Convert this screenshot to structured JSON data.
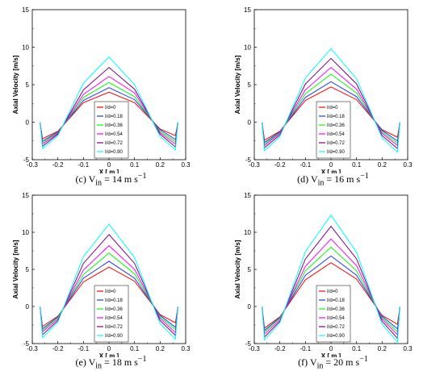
{
  "series_names": [
    "I/d=0",
    "I/d=0.18",
    "I/d=0.36",
    "I/d=0.54",
    "I/d=0.72",
    "I/d=0.90"
  ],
  "series_colors": [
    "#ff0000",
    "#1a3cff",
    "#00ff00",
    "#ff00ff",
    "#800080",
    "#00ffff"
  ],
  "panels": [
    {
      "caption_prefix": "(c) V",
      "caption_sub": "in",
      "caption_rest": " = 14 m s",
      "caption_sup": "−1"
    },
    {
      "caption_prefix": "(d) V",
      "caption_sub": "in",
      "caption_rest": " = 16 m s",
      "caption_sup": "−1"
    },
    {
      "caption_prefix": "(e) V",
      "caption_sub": "in",
      "caption_rest": " = 18 m s",
      "caption_sup": "−1"
    },
    {
      "caption_prefix": "(f) V",
      "caption_sub": "in",
      "caption_rest": " = 20 m s",
      "caption_sup": "−1"
    }
  ],
  "chart_data": [
    {
      "type": "line",
      "title": "",
      "xlabel": "X [ m ]",
      "ylabel": "Axial Velocity [m/s]",
      "xlim": [
        -0.3,
        0.3
      ],
      "ylim": [
        -5,
        15
      ],
      "xticks": [
        "-0.3",
        "-0.2",
        "-0.1",
        "0",
        "0.1",
        "0.2",
        "0.3"
      ],
      "yticks": [
        "-5",
        "0",
        "5",
        "10",
        "15"
      ],
      "x": [
        -0.27,
        -0.26,
        -0.2,
        -0.1,
        0,
        0.1,
        0.2,
        0.26,
        0.27
      ],
      "series": [
        {
          "name": "I/d=0",
          "values": [
            0,
            -2.2,
            -1.2,
            2.6,
            4.0,
            2.6,
            -0.9,
            -1.8,
            0
          ]
        },
        {
          "name": "I/d=0.18",
          "values": [
            0,
            -2.5,
            -1.3,
            2.9,
            4.6,
            3.0,
            -1.0,
            -2.3,
            0
          ]
        },
        {
          "name": "I/d=0.36",
          "values": [
            0,
            -2.7,
            -1.4,
            3.3,
            5.3,
            3.4,
            -1.2,
            -2.6,
            0
          ]
        },
        {
          "name": "I/d=0.54",
          "values": [
            0,
            -2.9,
            -1.5,
            3.7,
            6.1,
            3.9,
            -1.4,
            -2.9,
            0
          ]
        },
        {
          "name": "I/d=0.72",
          "values": [
            0,
            -3.2,
            -1.6,
            4.3,
            7.3,
            4.4,
            -1.6,
            -3.3,
            0
          ]
        },
        {
          "name": "I/d=0.90",
          "values": [
            0,
            -3.5,
            -1.8,
            5.2,
            8.7,
            5.0,
            -1.9,
            -3.7,
            0
          ]
        }
      ]
    },
    {
      "type": "line",
      "title": "",
      "xlabel": "X [ m ]",
      "ylabel": "Axial Velocity [m/s]",
      "xlim": [
        -0.3,
        0.3
      ],
      "ylim": [
        -5,
        15
      ],
      "xticks": [
        "-0.3",
        "-0.2",
        "-0.1",
        "0",
        "0.1",
        "0.2",
        "0.3"
      ],
      "yticks": [
        "-5",
        "0",
        "5",
        "10",
        "15"
      ],
      "x": [
        -0.27,
        -0.26,
        -0.2,
        -0.1,
        0,
        0.1,
        0.2,
        0.26,
        0.27
      ],
      "series": [
        {
          "name": "I/d=0",
          "values": [
            0,
            -2.4,
            -1.2,
            2.9,
            4.7,
            3.0,
            -1.0,
            -2.0,
            0
          ]
        },
        {
          "name": "I/d=0.18",
          "values": [
            0,
            -2.7,
            -1.3,
            3.3,
            5.4,
            3.4,
            -1.1,
            -2.5,
            0
          ]
        },
        {
          "name": "I/d=0.36",
          "values": [
            0,
            -2.9,
            -1.4,
            3.8,
            6.4,
            3.9,
            -1.3,
            -2.8,
            0
          ]
        },
        {
          "name": "I/d=0.54",
          "values": [
            0,
            -3.1,
            -1.5,
            4.3,
            7.3,
            4.4,
            -1.5,
            -3.1,
            0
          ]
        },
        {
          "name": "I/d=0.72",
          "values": [
            0,
            -3.4,
            -1.7,
            5.1,
            8.5,
            5.1,
            -1.8,
            -3.5,
            0
          ]
        },
        {
          "name": "I/d=0.90",
          "values": [
            0,
            -3.8,
            -1.9,
            5.9,
            9.8,
            5.8,
            -2.1,
            -4.0,
            0
          ]
        }
      ]
    },
    {
      "type": "line",
      "title": "",
      "xlabel": "X [ m ]",
      "ylabel": "Axial Velocity [m/s]",
      "xlim": [
        -0.3,
        0.3
      ],
      "ylim": [
        -5,
        15
      ],
      "xticks": [
        "-0.3",
        "-0.2",
        "-0.1",
        "0",
        "0.1",
        "0.2",
        "0.3"
      ],
      "yticks": [
        "-5",
        "0",
        "5",
        "10",
        "15"
      ],
      "x": [
        -0.27,
        -0.26,
        -0.2,
        -0.1,
        0,
        0.1,
        0.2,
        0.26,
        0.27
      ],
      "series": [
        {
          "name": "I/d=0",
          "values": [
            0,
            -2.7,
            -1.3,
            3.3,
            5.3,
            3.4,
            -1.1,
            -2.2,
            0
          ]
        },
        {
          "name": "I/d=0.18",
          "values": [
            0,
            -3.0,
            -1.4,
            3.8,
            6.1,
            3.8,
            -1.2,
            -2.8,
            0
          ]
        },
        {
          "name": "I/d=0.36",
          "values": [
            0,
            -3.2,
            -1.5,
            4.3,
            7.2,
            4.4,
            -1.4,
            -3.1,
            0
          ]
        },
        {
          "name": "I/d=0.54",
          "values": [
            0,
            -3.4,
            -1.7,
            4.9,
            8.2,
            5.0,
            -1.6,
            -3.5,
            0
          ]
        },
        {
          "name": "I/d=0.72",
          "values": [
            0,
            -3.8,
            -1.9,
            5.8,
            9.7,
            5.8,
            -1.9,
            -3.9,
            0
          ]
        },
        {
          "name": "I/d=0.90",
          "values": [
            0,
            -4.2,
            -2.1,
            6.7,
            11.1,
            6.6,
            -2.3,
            -4.4,
            0
          ]
        }
      ]
    },
    {
      "type": "line",
      "title": "",
      "xlabel": "X [ m ]",
      "ylabel": "Axial Velocity [m/s]",
      "xlim": [
        -0.3,
        0.3
      ],
      "ylim": [
        -5,
        15
      ],
      "xticks": [
        "-0.3",
        "-0.2",
        "-0.1",
        "0",
        "0.1",
        "0.2",
        "0.3"
      ],
      "yticks": [
        "-5",
        "0",
        "5",
        "10",
        "15"
      ],
      "x": [
        -0.27,
        -0.26,
        -0.2,
        -0.1,
        0,
        0.1,
        0.2,
        0.26,
        0.27
      ],
      "series": [
        {
          "name": "I/d=0",
          "values": [
            0,
            -2.9,
            -1.4,
            3.6,
            5.9,
            3.7,
            -1.2,
            -2.4,
            0
          ]
        },
        {
          "name": "I/d=0.18",
          "values": [
            0,
            -3.2,
            -1.5,
            4.2,
            6.8,
            4.2,
            -1.3,
            -3.0,
            0
          ]
        },
        {
          "name": "I/d=0.36",
          "values": [
            0,
            -3.4,
            -1.6,
            4.8,
            8.0,
            4.8,
            -1.5,
            -3.4,
            0
          ]
        },
        {
          "name": "I/d=0.54",
          "values": [
            0,
            -3.7,
            -1.8,
            5.4,
            9.1,
            5.5,
            -1.7,
            -3.8,
            0
          ]
        },
        {
          "name": "I/d=0.72",
          "values": [
            0,
            -4.1,
            -2.0,
            6.4,
            10.8,
            6.4,
            -2.0,
            -4.3,
            0
          ]
        },
        {
          "name": "I/d=0.90",
          "values": [
            0,
            -4.5,
            -2.2,
            7.4,
            12.3,
            7.3,
            -2.4,
            -4.8,
            0
          ]
        }
      ]
    }
  ]
}
